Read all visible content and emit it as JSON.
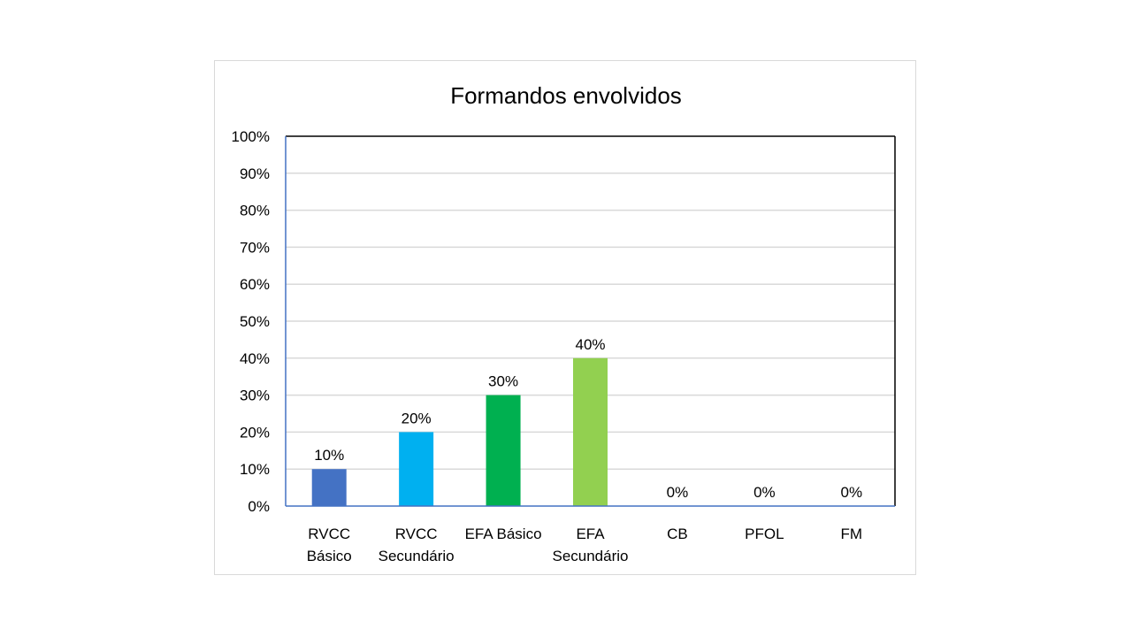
{
  "chart_data": {
    "type": "bar",
    "title": "Formandos envolvidos",
    "categories": [
      [
        "RVCC",
        "Básico"
      ],
      [
        "RVCC",
        "Secundário"
      ],
      [
        "EFA Básico"
      ],
      [
        "EFA",
        "Secundário"
      ],
      [
        "CB"
      ],
      [
        "PFOL"
      ],
      [
        "FM"
      ]
    ],
    "values": [
      10,
      20,
      30,
      40,
      0,
      0,
      0
    ],
    "data_labels": [
      "10%",
      "20%",
      "30%",
      "40%",
      "0%",
      "0%",
      "0%"
    ],
    "colors": [
      "#4472c4",
      "#00b0f0",
      "#00b050",
      "#92d050",
      "#a5a5a5",
      "#a5a5a5",
      "#a5a5a5"
    ],
    "y_ticks": [
      "0%",
      "10%",
      "20%",
      "30%",
      "40%",
      "50%",
      "60%",
      "70%",
      "80%",
      "90%",
      "100%"
    ],
    "ylim": [
      0,
      100
    ],
    "xlabel": "",
    "ylabel": "",
    "grid": true,
    "legend": "none"
  }
}
